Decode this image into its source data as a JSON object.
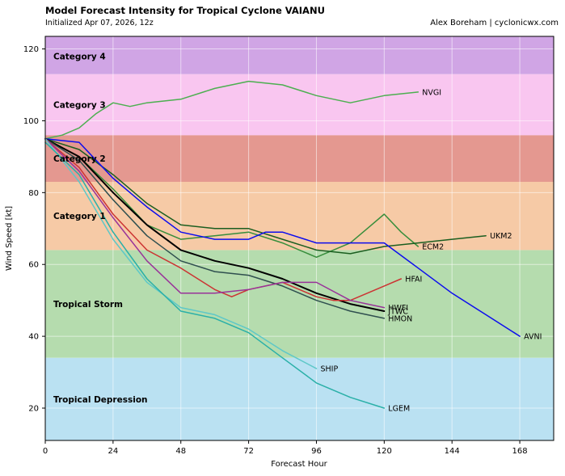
{
  "header": {
    "title": "Model Forecast Intensity for Tropical Cyclone VAIANU",
    "subtitle": "Initialized Apr 07, 2026, 12z",
    "credit": "Alex Boreham | cyclonicwx.com"
  },
  "chart_data": {
    "type": "line",
    "title": "Model Forecast Intensity for Tropical Cyclone VAIANU",
    "subtitle": "Initialized Apr 07, 2026, 12z",
    "xlabel": "Forecast Hour",
    "ylabel": "Wind Speed [kt]",
    "xlim": [
      0,
      180
    ],
    "ylim": [
      11,
      123.5
    ],
    "xticks": [
      0,
      24,
      48,
      72,
      96,
      120,
      144,
      168
    ],
    "yticks": [
      20,
      40,
      60,
      80,
      100,
      120
    ],
    "grid": true,
    "bands": [
      {
        "label": "Tropical Depression",
        "from": 11,
        "to": 34,
        "label_kt": 22.5,
        "color": "#bae1f2",
        "label_color": "#45b1e8"
      },
      {
        "label": "Tropical Storm",
        "from": 34,
        "to": 64,
        "label_kt": 49,
        "color": "#b5dcae",
        "label_color": "#3da83d"
      },
      {
        "label": "Category 1",
        "from": 64,
        "to": 83,
        "label_kt": 73.5,
        "color": "#f6caa6",
        "label_color": "#e8913f"
      },
      {
        "label": "Category 2",
        "from": 83,
        "to": 96,
        "label_kt": 89.5,
        "color": "#e49890",
        "label_color": "#d23b33"
      },
      {
        "label": "Category 3",
        "from": 96,
        "to": 113,
        "label_kt": 104.5,
        "color": "#f9c6f0",
        "label_color": "#ef6cc0"
      },
      {
        "label": "Category 4",
        "from": 113,
        "to": 123.5,
        "label_kt": 118,
        "color": "#d0a5e5",
        "label_color": "#a44fd0"
      }
    ],
    "series": [
      {
        "name": "NVGI",
        "color": "#4caf50",
        "points": [
          [
            0,
            95
          ],
          [
            6,
            96
          ],
          [
            12,
            98
          ],
          [
            18,
            102
          ],
          [
            24,
            105
          ],
          [
            30,
            104
          ],
          [
            36,
            105
          ],
          [
            48,
            106
          ],
          [
            60,
            109
          ],
          [
            72,
            111
          ],
          [
            84,
            110
          ],
          [
            96,
            107
          ],
          [
            108,
            105
          ],
          [
            120,
            107
          ],
          [
            132,
            108
          ]
        ]
      },
      {
        "name": "ECM2",
        "color": "#388e3c",
        "points": [
          [
            0,
            95
          ],
          [
            12,
            90
          ],
          [
            24,
            81
          ],
          [
            36,
            71
          ],
          [
            48,
            67
          ],
          [
            60,
            68
          ],
          [
            72,
            69
          ],
          [
            84,
            66
          ],
          [
            96,
            62
          ],
          [
            108,
            66
          ],
          [
            114,
            70
          ],
          [
            120,
            74
          ],
          [
            126,
            69
          ],
          [
            132,
            65
          ]
        ]
      },
      {
        "name": "UKM2",
        "color": "#1b5e20",
        "points": [
          [
            0,
            95
          ],
          [
            12,
            92
          ],
          [
            24,
            85
          ],
          [
            36,
            77
          ],
          [
            48,
            71
          ],
          [
            60,
            70
          ],
          [
            72,
            70
          ],
          [
            84,
            67
          ],
          [
            96,
            64
          ],
          [
            108,
            63
          ],
          [
            120,
            65
          ],
          [
            132,
            66
          ],
          [
            144,
            67
          ],
          [
            156,
            68
          ]
        ]
      },
      {
        "name": "AVNI",
        "color": "#0c0cee",
        "points": [
          [
            0,
            95
          ],
          [
            12,
            94
          ],
          [
            24,
            84
          ],
          [
            36,
            76
          ],
          [
            48,
            69
          ],
          [
            60,
            67
          ],
          [
            72,
            67
          ],
          [
            78,
            69
          ],
          [
            84,
            69
          ],
          [
            96,
            66
          ],
          [
            108,
            66
          ],
          [
            120,
            66
          ],
          [
            132,
            59
          ],
          [
            144,
            52
          ],
          [
            156,
            46
          ],
          [
            168,
            40
          ]
        ]
      },
      {
        "name": "JTWC",
        "color": "#000000",
        "width": 2,
        "points": [
          [
            0,
            95
          ],
          [
            12,
            90
          ],
          [
            24,
            80
          ],
          [
            36,
            71
          ],
          [
            48,
            64
          ],
          [
            60,
            61
          ],
          [
            72,
            59
          ],
          [
            84,
            56
          ],
          [
            96,
            52
          ],
          [
            108,
            49
          ],
          [
            120,
            47
          ]
        ]
      },
      {
        "name": "HMON",
        "color": "#2f4f4f",
        "points": [
          [
            0,
            95
          ],
          [
            12,
            89
          ],
          [
            24,
            78
          ],
          [
            36,
            68
          ],
          [
            48,
            61
          ],
          [
            60,
            58
          ],
          [
            72,
            57
          ],
          [
            84,
            54
          ],
          [
            96,
            50
          ],
          [
            108,
            47
          ],
          [
            120,
            45
          ]
        ]
      },
      {
        "name": "HFAI",
        "color": "#cc3333",
        "points": [
          [
            0,
            95
          ],
          [
            12,
            87
          ],
          [
            24,
            74
          ],
          [
            36,
            64
          ],
          [
            48,
            59
          ],
          [
            54,
            56
          ],
          [
            60,
            53
          ],
          [
            66,
            51
          ],
          [
            72,
            53
          ],
          [
            84,
            55
          ],
          [
            90,
            53
          ],
          [
            96,
            51
          ],
          [
            102,
            50
          ],
          [
            108,
            50
          ],
          [
            114,
            52
          ],
          [
            120,
            54
          ],
          [
            126,
            56
          ]
        ]
      },
      {
        "name": "HWFI",
        "color": "#993399",
        "points": [
          [
            0,
            95
          ],
          [
            12,
            86
          ],
          [
            24,
            73
          ],
          [
            36,
            61
          ],
          [
            48,
            52
          ],
          [
            60,
            52
          ],
          [
            72,
            53
          ],
          [
            84,
            55
          ],
          [
            96,
            55
          ],
          [
            108,
            50
          ],
          [
            120,
            48
          ]
        ]
      },
      {
        "name": "SHIP",
        "color": "#5ec8c8",
        "points": [
          [
            0,
            95
          ],
          [
            12,
            83
          ],
          [
            24,
            67
          ],
          [
            36,
            55
          ],
          [
            48,
            48
          ],
          [
            60,
            46
          ],
          [
            72,
            42
          ],
          [
            84,
            36
          ],
          [
            96,
            31
          ]
        ]
      },
      {
        "name": "LGEM",
        "color": "#2ab0a8",
        "points": [
          [
            0,
            94
          ],
          [
            12,
            85
          ],
          [
            24,
            69
          ],
          [
            36,
            56
          ],
          [
            48,
            47
          ],
          [
            60,
            45
          ],
          [
            72,
            41
          ],
          [
            84,
            34
          ],
          [
            96,
            27
          ],
          [
            108,
            23
          ],
          [
            120,
            20
          ]
        ]
      }
    ]
  }
}
